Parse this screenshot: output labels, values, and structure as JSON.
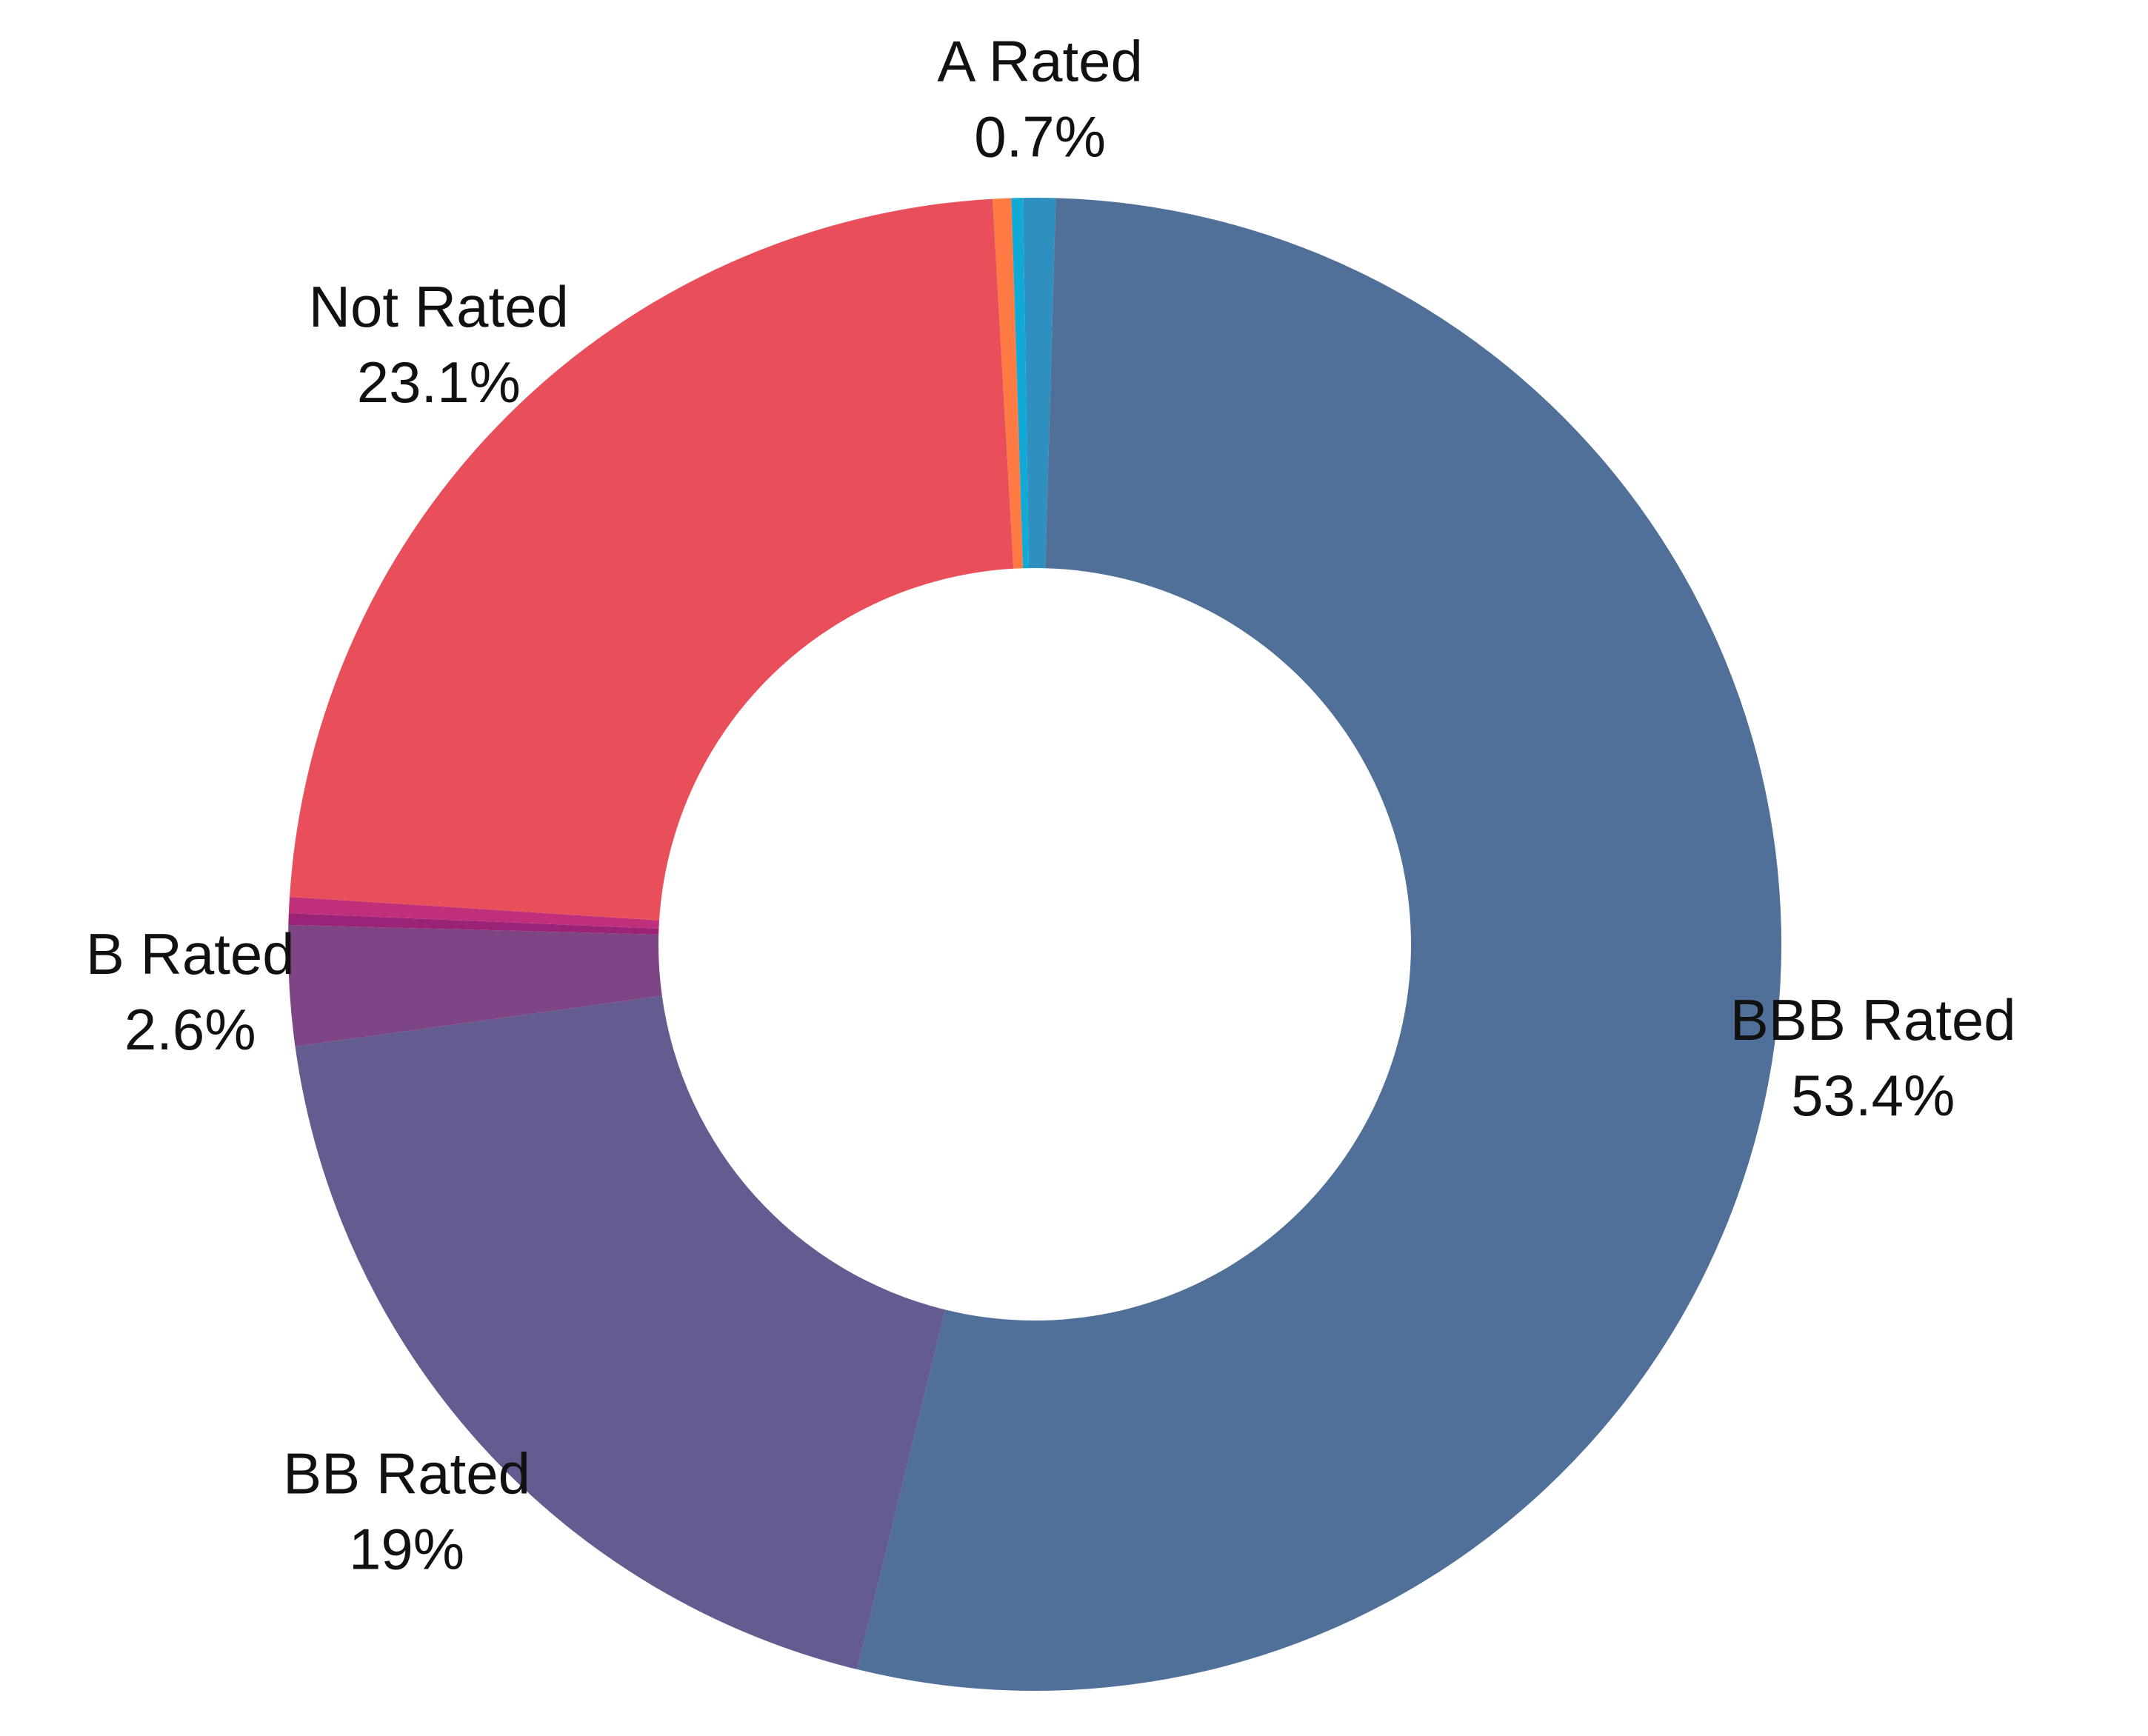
{
  "chart_data": {
    "type": "pie",
    "donut": true,
    "title": "",
    "legend": "none",
    "slices": [
      {
        "name": "A Rated",
        "value": 0.7,
        "color": "#2f8fbf",
        "label": "A Rated",
        "pct_label": "0.7%"
      },
      {
        "name": "BBB Rated",
        "value": 53.4,
        "color": "#506f99",
        "label": "BBB Rated",
        "pct_label": "53.4%"
      },
      {
        "name": "BB Rated",
        "value": 19.0,
        "color": "#645c90",
        "label": "BB Rated",
        "pct_label": "19%"
      },
      {
        "name": "B Rated",
        "value": 2.6,
        "color": "#7e4585",
        "label": "B Rated",
        "pct_label": "2.6%"
      },
      {
        "name": "",
        "value": 0.25,
        "color": "#9a2277",
        "label": "",
        "pct_label": ""
      },
      {
        "name": "",
        "value": 0.35,
        "color": "#c0307a",
        "label": "",
        "pct_label": ""
      },
      {
        "name": "Not Rated",
        "value": 23.1,
        "color": "#e94f5a",
        "label": "Not Rated",
        "pct_label": "23.1%"
      },
      {
        "name": "",
        "value": 0.4,
        "color": "#ff7b43",
        "label": "",
        "pct_label": ""
      },
      {
        "name": "",
        "value": 0.25,
        "color": "#11a9d6",
        "label": "",
        "pct_label": ""
      }
    ]
  }
}
